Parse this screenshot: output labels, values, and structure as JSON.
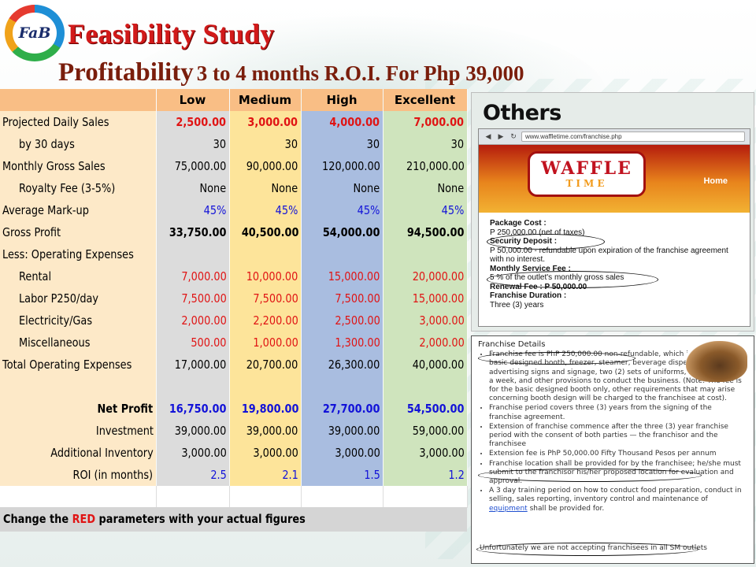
{
  "header": {
    "logo_text": "FaB",
    "title": "Feasibility Study",
    "subtitle_main": "Profitability",
    "subtitle_rest": "3 to 4 months R.O.I. For Php 39,000"
  },
  "table": {
    "columns": [
      "",
      "Low",
      "Medium",
      "High",
      "Excellent"
    ],
    "rows": [
      {
        "label": "Projected Daily Sales",
        "values": [
          "2,500.00",
          "3,000.00",
          "4,000.00",
          "7,000.00"
        ]
      },
      {
        "label": "by 30 days",
        "values": [
          "30",
          "30",
          "30",
          "30"
        ]
      },
      {
        "label": "Monthly Gross Sales",
        "values": [
          "75,000.00",
          "90,000.00",
          "120,000.00",
          "210,000.00"
        ]
      },
      {
        "label": "Royalty Fee (3-5%)",
        "values": [
          "None",
          "None",
          "None",
          "None"
        ]
      },
      {
        "label": "Average Mark-up",
        "values": [
          "45%",
          "45%",
          "45%",
          "45%"
        ]
      },
      {
        "label": "Gross Profit",
        "values": [
          "33,750.00",
          "40,500.00",
          "54,000.00",
          "94,500.00"
        ]
      },
      {
        "label": "Less: Operating Expenses",
        "values": [
          "",
          "",
          "",
          ""
        ]
      },
      {
        "label": "Rental",
        "values": [
          "7,000.00",
          "10,000.00",
          "15,000.00",
          "20,000.00"
        ]
      },
      {
        "label": "Labor P250/day",
        "values": [
          "7,500.00",
          "7,500.00",
          "7,500.00",
          "15,000.00"
        ]
      },
      {
        "label": "Electricity/Gas",
        "values": [
          "2,000.00",
          "2,200.00",
          "2,500.00",
          "3,000.00"
        ]
      },
      {
        "label": "Miscellaneous",
        "values": [
          "500.00",
          "1,000.00",
          "1,300.00",
          "2,000.00"
        ]
      },
      {
        "label": "Total Operating Expenses",
        "values": [
          "17,000.00",
          "20,700.00",
          "26,300.00",
          "40,000.00"
        ]
      },
      {
        "label": "",
        "values": [
          "",
          "",
          "",
          ""
        ]
      },
      {
        "label": "Net Profit",
        "values": [
          "16,750.00",
          "19,800.00",
          "27,700.00",
          "54,500.00"
        ]
      },
      {
        "label": "Investment",
        "values": [
          "39,000.00",
          "39,000.00",
          "39,000.00",
          "59,000.00"
        ]
      },
      {
        "label": "Additional Inventory",
        "values": [
          "3,000.00",
          "3,000.00",
          "3,000.00",
          "3,000.00"
        ]
      },
      {
        "label": "ROI  (in months)",
        "values": [
          "2.5",
          "2.1",
          "1.5",
          "1.2"
        ]
      }
    ],
    "note_pre": "Change the ",
    "note_red": "RED",
    "note_post": " parameters with your actual figures"
  },
  "others": {
    "title": "Others",
    "url": "www.waffletime.com/franchise.php",
    "logo_top": "WAFFLE",
    "logo_bottom": "TIME",
    "home": "Home",
    "package_cost_label": "Package Cost :",
    "package_cost_value": "P 250,000.00 (net of taxes)",
    "deposit_label": "Security Deposit :",
    "deposit_value": "P 50,000.00 - refundable upon expiration of the franchise agreement with no interest.",
    "service_fee_label": "Monthly Service Fee :",
    "service_fee_value": "5 % of the outlet's monthly gross sales",
    "renewal_label": "Renewal Fee : P 50,000.00",
    "duration_label": "Franchise Duration :",
    "duration_value": "Three (3) years"
  },
  "franchise_details": {
    "heading": "Franchise Details",
    "items": [
      "Franchise fee is PhP 250,000.00 non-refundable, which includes the basic designed booth, freezer, steamer, beverage dispenser, advertising signs and signage, two (2) sets of uniforms, free delivery 3x a week, and other provisions to conduct the business. (Note: The fee is for the basic designed booth only, other requirements that may arise concerning booth design will be charged to the franchisee at cost).",
      "Franchise period covers three (3) years from the signing of the franchise agreement.",
      "Extension of franchise commence after the three (3) year franchise period with the consent of both parties — the franchisor and the franchisee",
      "Extension fee is PhP 50,000.00 Fifty Thousand Pesos per annum",
      "Franchise location shall be provided for by the franchisee; he/she must submit to the franchisor his/her proposed location for evaluation and approval."
    ],
    "training_pre": "A 3 day training period on how to conduct food preparation, conduct in selling, sales reporting, inventory control and maintenance of ",
    "training_link": "equipment",
    "training_post": " shall be provided for.",
    "footer": "Unfortunately we are not accepting franchisees in all SM outlets"
  },
  "colors": {
    "title_red": "#d21a1a",
    "subtitle_brown": "#7a1e0c",
    "low_col": "#dcdcdc",
    "medium_col": "#fde49a",
    "high_col": "#a9bde0",
    "excellent_col": "#cfe4bd",
    "label_col": "#fde9c8",
    "header_row": "#f9be85"
  }
}
